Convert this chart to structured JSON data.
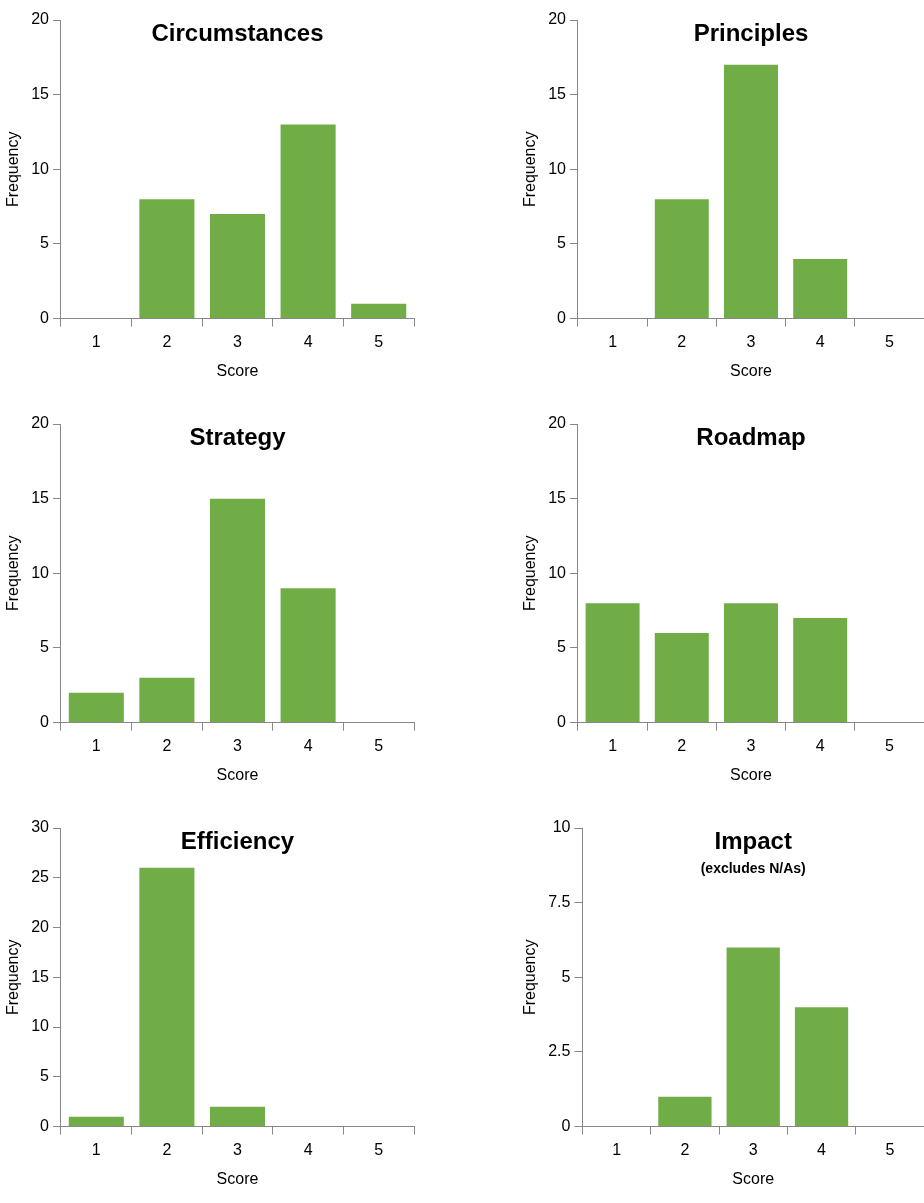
{
  "chart_data": [
    {
      "type": "bar",
      "title": "Circumstances",
      "xlabel": "Score",
      "ylabel": "Frequency",
      "categories": [
        "1",
        "2",
        "3",
        "4",
        "5"
      ],
      "values": [
        0,
        8,
        7,
        13,
        1
      ],
      "color": "#70ad47",
      "ylim": [
        0,
        20
      ],
      "yticks": [
        0,
        5,
        10,
        15,
        20
      ],
      "grid": false,
      "legend": false
    },
    {
      "type": "bar",
      "title": "Principles",
      "xlabel": "Score",
      "ylabel": "Frequency",
      "categories": [
        "1",
        "2",
        "3",
        "4",
        "5"
      ],
      "values": [
        0,
        8,
        17,
        4,
        0
      ],
      "color": "#70ad47",
      "ylim": [
        0,
        20
      ],
      "yticks": [
        0,
        5,
        10,
        15,
        20
      ],
      "grid": false,
      "legend": false
    },
    {
      "type": "bar",
      "title": "Strategy",
      "xlabel": "Score",
      "ylabel": "Frequency",
      "categories": [
        "1",
        "2",
        "3",
        "4",
        "5"
      ],
      "values": [
        2,
        3,
        15,
        9,
        0
      ],
      "color": "#70ad47",
      "ylim": [
        0,
        20
      ],
      "yticks": [
        0,
        5,
        10,
        15,
        20
      ],
      "grid": false,
      "legend": false
    },
    {
      "type": "bar",
      "title": "Roadmap",
      "xlabel": "Score",
      "ylabel": "Frequency",
      "categories": [
        "1",
        "2",
        "3",
        "4",
        "5"
      ],
      "values": [
        8,
        6,
        8,
        7,
        0
      ],
      "color": "#70ad47",
      "ylim": [
        0,
        20
      ],
      "yticks": [
        0,
        5,
        10,
        15,
        20
      ],
      "grid": false,
      "legend": false
    },
    {
      "type": "bar",
      "title": "Efficiency",
      "xlabel": "Score",
      "ylabel": "Frequency",
      "categories": [
        "1",
        "2",
        "3",
        "4",
        "5"
      ],
      "values": [
        1,
        26,
        2,
        0,
        0
      ],
      "color": "#70ad47",
      "ylim": [
        0,
        30
      ],
      "yticks": [
        0,
        5,
        10,
        15,
        20,
        25,
        30
      ],
      "grid": false,
      "legend": false
    },
    {
      "type": "bar",
      "title": "Impact",
      "subtitle": "(excludes N/As)",
      "xlabel": "Score",
      "ylabel": "Frequency",
      "categories": [
        "1",
        "2",
        "3",
        "4",
        "5"
      ],
      "values": [
        0,
        1,
        6,
        4,
        0
      ],
      "color": "#70ad47",
      "ylim": [
        0,
        10
      ],
      "yticks": [
        0,
        2.5,
        5,
        7.5,
        10
      ],
      "grid": false,
      "legend": false
    }
  ]
}
